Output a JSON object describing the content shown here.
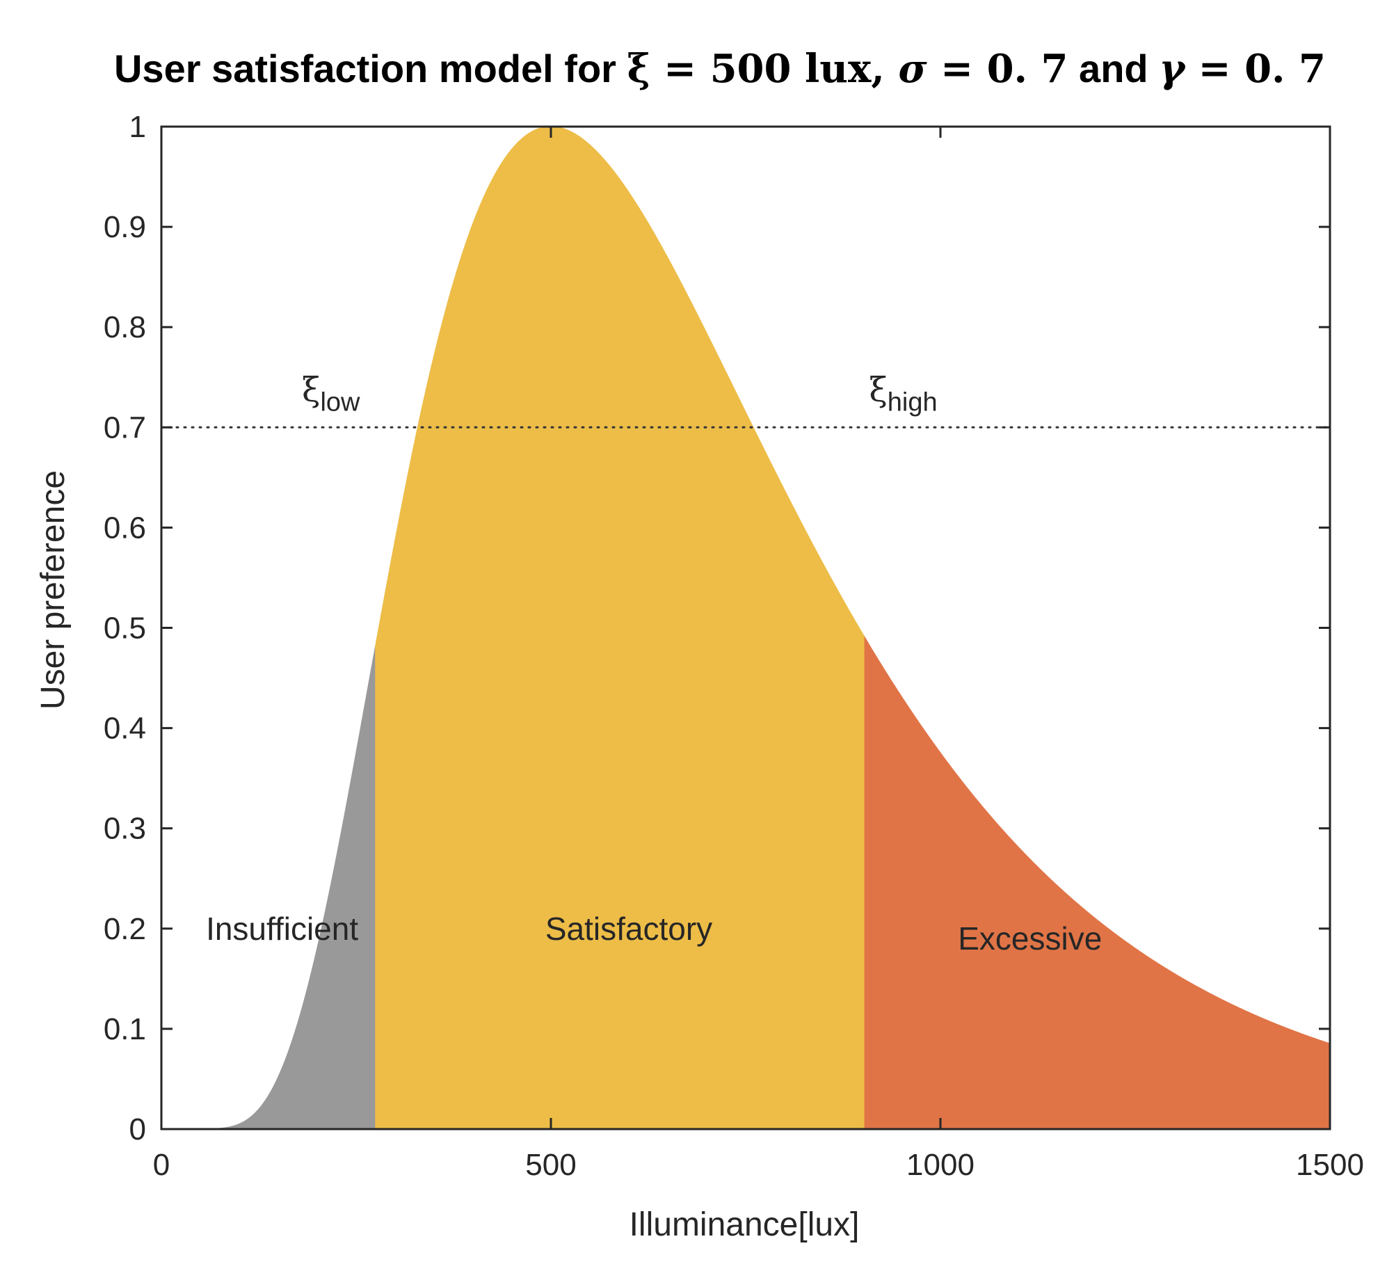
{
  "chart_data": {
    "type": "area",
    "title": {
      "prefix": "User satisfaction model for ",
      "xi_sym": "ξ",
      "eq1": " = 500 ",
      "lux": "lux",
      "comma": ", ",
      "sigma_sym": "σ",
      "eq2": " = 0. 7",
      "and": " and ",
      "gamma_sym": "γ",
      "eq3": " = 0. 7"
    },
    "xlabel": "Illuminance[lux]",
    "ylabel": "User preference",
    "xlim": [
      0,
      1500
    ],
    "ylim": [
      0,
      1
    ],
    "xticks": [
      0,
      500,
      1000,
      1500
    ],
    "xtick_labels": [
      "0",
      "500",
      "1000",
      "1500"
    ],
    "yticks": [
      0,
      0.1,
      0.2,
      0.3,
      0.4,
      0.5,
      0.6,
      0.7,
      0.8,
      0.9,
      1
    ],
    "ytick_labels": [
      "0",
      "0.1",
      "0.2",
      "0.3",
      "0.4",
      "0.5",
      "0.6",
      "0.7",
      "0.8",
      "0.9",
      "1"
    ],
    "model": {
      "xi": 500,
      "sigma": 0.7,
      "gamma": 0.7,
      "x_start": 50
    },
    "threshold": 0.7,
    "xi_low": 275,
    "xi_high": 903,
    "xi_symbol": "ξ",
    "xi_low_sub": "low",
    "xi_high_sub": "high",
    "regions": [
      {
        "name": "Insufficient",
        "from": 50,
        "to": 275,
        "color": "#999999",
        "label_x": 155,
        "label_y": 0.2
      },
      {
        "name": "Satisfactory",
        "from": 275,
        "to": 903,
        "color": "#edbd48",
        "label_x": 600,
        "label_y": 0.2
      },
      {
        "name": "Excessive",
        "from": 903,
        "to": 1500,
        "color": "#e07446",
        "label_x": 1115,
        "label_y": 0.19
      }
    ]
  }
}
